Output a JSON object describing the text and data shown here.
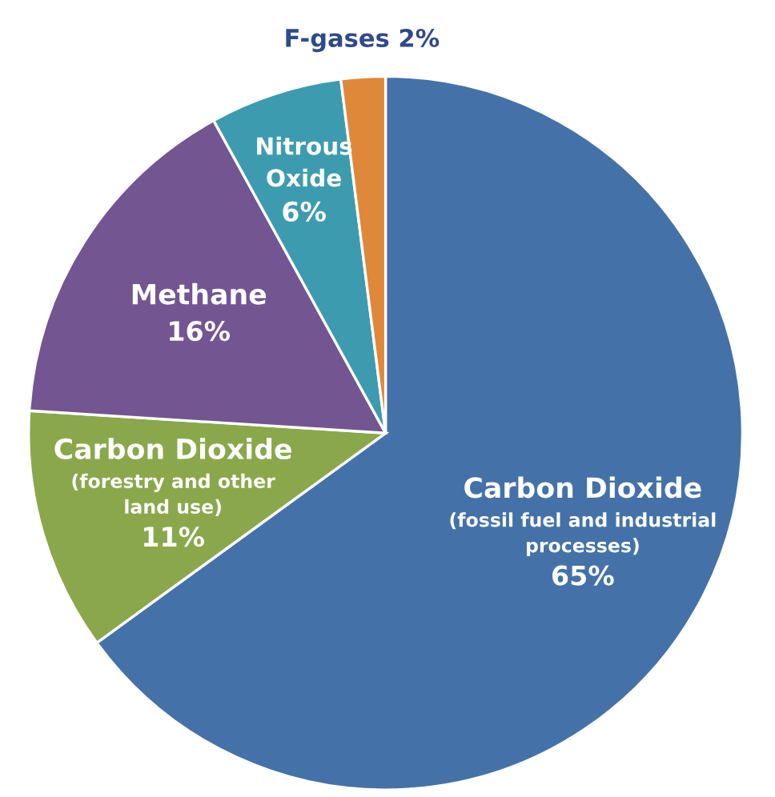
{
  "chart_data": {
    "type": "pie",
    "categories": [
      "Carbon Dioxide\n(fossil fuel and industrial\nprocesses)",
      "Carbon Dioxide\n(forestry and other\nland use)",
      "Methane",
      "Nitrous\nOxide",
      "F-gases"
    ],
    "values": [
      65,
      11,
      16,
      6,
      2
    ],
    "value_labels": [
      "65%",
      "11%",
      "16%",
      "6%",
      "2%"
    ],
    "colors": [
      "#4472a8",
      "#8aa84b",
      "#735592",
      "#3d9bb0",
      "#e0883a"
    ]
  }
}
